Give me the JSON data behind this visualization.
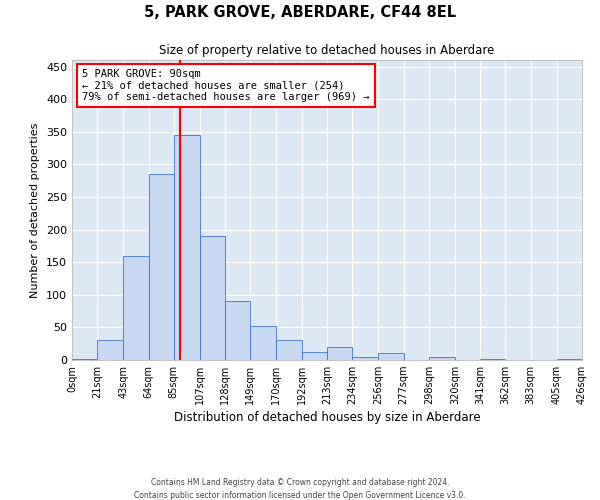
{
  "title": "5, PARK GROVE, ABERDARE, CF44 8EL",
  "subtitle": "Size of property relative to detached houses in Aberdare",
  "xlabel": "Distribution of detached houses by size in Aberdare",
  "ylabel": "Number of detached properties",
  "footer_line1": "Contains HM Land Registry data © Crown copyright and database right 2024.",
  "footer_line2": "Contains public sector information licensed under the Open Government Licence v3.0.",
  "annotation_title": "5 PARK GROVE: 90sqm",
  "annotation_line2": "← 21% of detached houses are smaller (254)",
  "annotation_line3": "79% of semi-detached houses are larger (969) →",
  "property_size": 90,
  "bar_edges": [
    0,
    21,
    43,
    64,
    85,
    107,
    128,
    149,
    170,
    192,
    213,
    234,
    256,
    277,
    298,
    320,
    341,
    362,
    383,
    405,
    426
  ],
  "bar_heights": [
    2,
    30,
    160,
    285,
    345,
    190,
    90,
    52,
    30,
    13,
    20,
    5,
    10,
    0,
    5,
    0,
    2,
    0,
    0,
    2
  ],
  "bar_color": "#c6d9f0",
  "bar_edge_color": "#4472c4",
  "vline_x": 90,
  "vline_color": "red",
  "background_color": "#dde8f5",
  "grid_color": "white",
  "ylim": [
    0,
    460
  ],
  "yticks": [
    0,
    50,
    100,
    150,
    200,
    250,
    300,
    350,
    400,
    450
  ]
}
